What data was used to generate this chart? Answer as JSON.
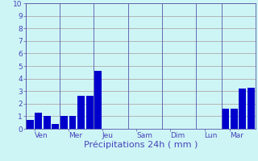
{
  "bar_values": [
    0.7,
    1.3,
    1.0,
    0.4,
    1.0,
    1.0,
    2.6,
    2.6,
    4.6,
    0,
    0,
    0,
    0,
    0,
    0,
    0,
    0,
    0,
    0,
    0,
    0,
    0,
    0,
    1.6,
    1.6,
    3.2,
    3.3
  ],
  "n_bars": 27,
  "day_labels": [
    "Ven",
    "Mer",
    "Jeu",
    "Sam",
    "Dim",
    "Lun",
    "Mar"
  ],
  "day_tick_positions": [
    0.5,
    4.5,
    8.5,
    12.5,
    16.5,
    20.5,
    23.5
  ],
  "day_sep_positions": [
    0,
    4,
    8,
    12,
    16,
    20,
    23
  ],
  "xlabel": "Précipitations 24h ( mm )",
  "ylim": [
    0,
    10
  ],
  "yticks": [
    0,
    1,
    2,
    3,
    4,
    5,
    6,
    7,
    8,
    9,
    10
  ],
  "bar_color": "#0000cc",
  "bg_color": "#cef5f5",
  "grid_color": "#b0b0b0",
  "axis_color": "#5555aa",
  "label_color": "#4444bb",
  "tick_label_color": "#4444bb",
  "font_size_ticks": 6.5,
  "font_size_xlabel": 8
}
